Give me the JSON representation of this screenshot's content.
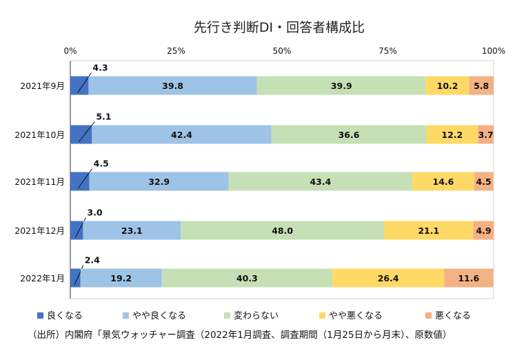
{
  "chart_data": {
    "type": "bar",
    "orientation": "horizontal",
    "stacked": true,
    "title": "先行き判断DI・回答者構成比",
    "categories": [
      "2021年9月",
      "2021年10月",
      "2021年11月",
      "2021年12月",
      "2022年1月"
    ],
    "x_ticks": [
      "0%",
      "25%",
      "50%",
      "75%",
      "100%"
    ],
    "xlim": [
      0,
      100
    ],
    "series": [
      {
        "name": "良くなる",
        "color": "#4472C4",
        "values": [
          4.3,
          5.1,
          4.5,
          3.0,
          2.4
        ]
      },
      {
        "name": "やや良くなる",
        "color": "#9DC3E6",
        "values": [
          39.8,
          42.4,
          32.9,
          23.1,
          19.2
        ]
      },
      {
        "name": "変わらない",
        "color": "#C5E0B4",
        "values": [
          39.9,
          36.6,
          43.4,
          48.0,
          40.3
        ]
      },
      {
        "name": "やや悪くなる",
        "color": "#FFD966",
        "values": [
          10.2,
          12.2,
          14.6,
          21.1,
          26.4
        ]
      },
      {
        "name": "悪くなる",
        "color": "#F4B183",
        "values": [
          5.8,
          3.7,
          4.5,
          4.9,
          11.6
        ]
      }
    ],
    "legend_position": "bottom",
    "source_note": "（出所）内閣府「景気ウォッチャー調査（2022年1月調査、調査期間（1月25日から月末）、原数値）"
  }
}
